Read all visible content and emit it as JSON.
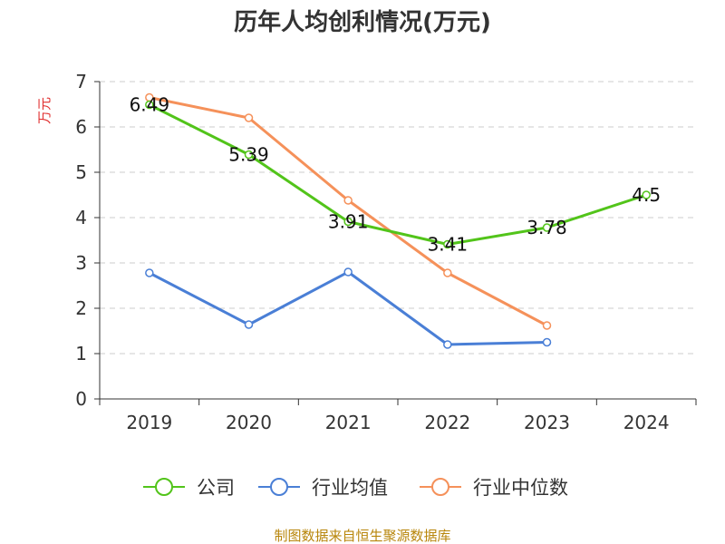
{
  "chart_data": {
    "type": "line",
    "title": "历年人均创利情况(万元)",
    "ylabel": "万元",
    "xlabel": "",
    "categories": [
      "2019",
      "2020",
      "2021",
      "2022",
      "2023",
      "2024"
    ],
    "ylim": [
      0,
      7
    ],
    "yticks": [
      0,
      1,
      2,
      3,
      4,
      5,
      6,
      7
    ],
    "grid": true,
    "legend_position": "bottom",
    "series": [
      {
        "name": "公司",
        "color": "#52c41a",
        "values": [
          6.49,
          5.39,
          3.91,
          3.41,
          3.78,
          4.5
        ],
        "labels": [
          "6.49",
          "5.39",
          "3.91",
          "3.41",
          "3.78",
          "4.5"
        ]
      },
      {
        "name": "行业均值",
        "color": "#4a7fd6",
        "values": [
          2.78,
          1.64,
          2.8,
          1.2,
          1.25,
          null
        ]
      },
      {
        "name": "行业中位数",
        "color": "#f5915a",
        "values": [
          6.65,
          6.2,
          4.38,
          2.78,
          1.62,
          null
        ]
      }
    ]
  },
  "source": "制图数据来自恒生聚源数据库"
}
